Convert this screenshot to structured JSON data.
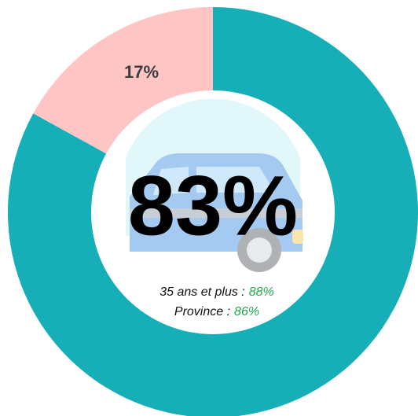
{
  "chart_data": {
    "type": "donut",
    "values": [
      83,
      17
    ],
    "value_labels": [
      "83%",
      "17%"
    ],
    "colors": [
      "#16aeb7",
      "#ffc4c4"
    ],
    "annotations": [
      {
        "text": "35 ans et plus :",
        "value_label": "88%"
      },
      {
        "text": "Province :",
        "value_label": "86%"
      }
    ],
    "highlight_color": "#22a94a"
  }
}
